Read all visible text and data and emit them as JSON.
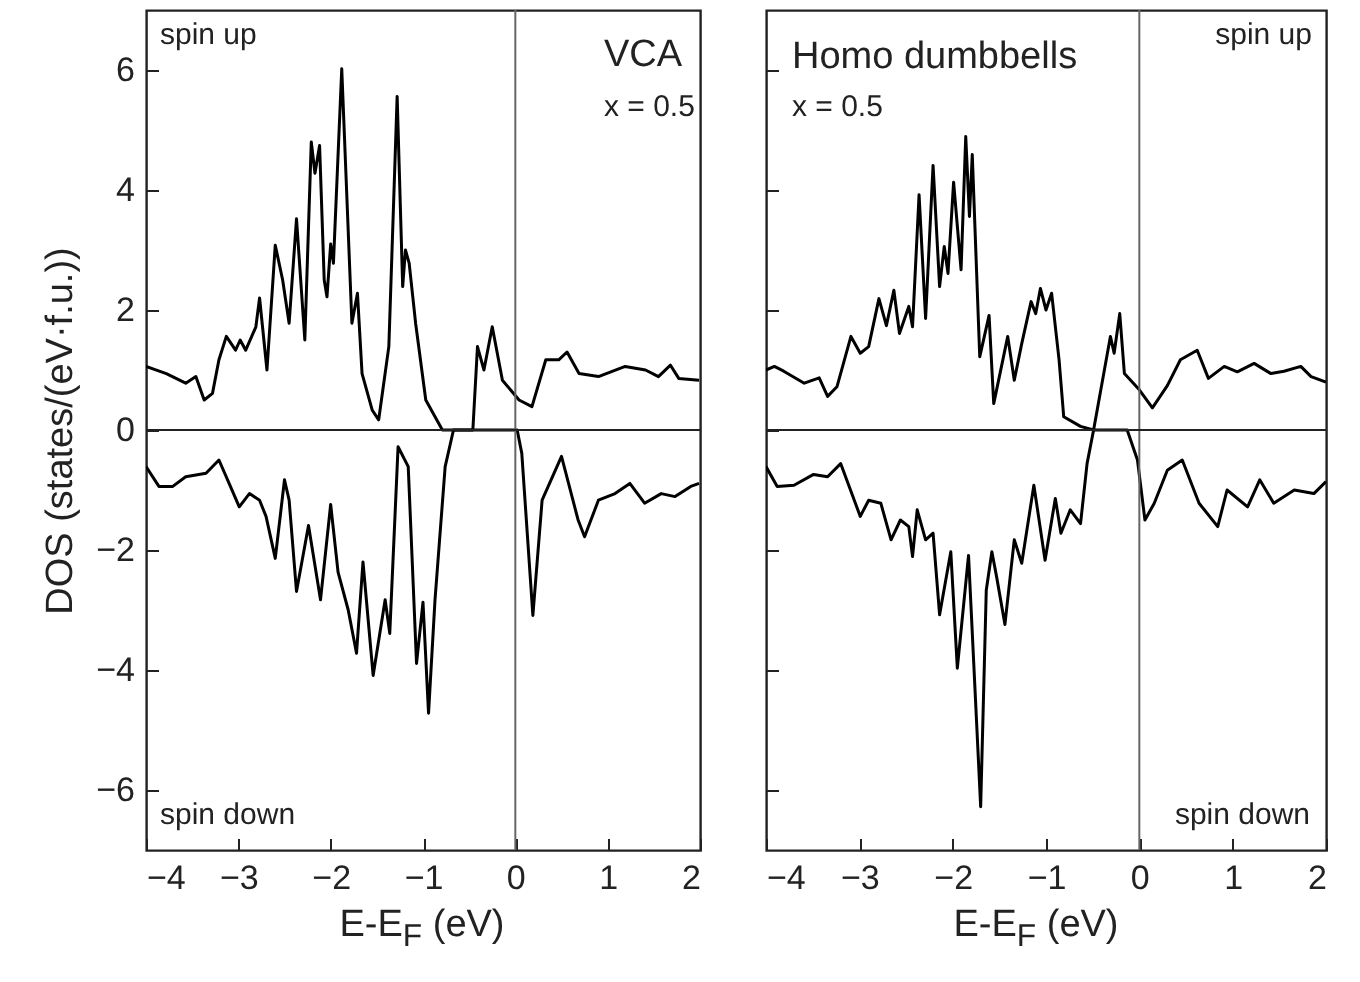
{
  "chart_data": [
    {
      "type": "line",
      "xlabel": "E-E$_{F}$ (eV)",
      "ylabel": "DOS (states/(eV·f.u.))",
      "xlim": [
        -4,
        2
      ],
      "ylim": [
        -7,
        7
      ],
      "xticks": [
        -4,
        -3,
        -2,
        -1,
        0,
        1,
        2
      ],
      "yticks": [
        -6,
        -4,
        -2,
        0,
        2,
        4,
        6
      ],
      "series": [
        {
          "color": "#000000",
          "x": [
            -4,
            -3.78,
            -3.57,
            -3.46,
            -3.37,
            -3.28,
            -3.21,
            -3.13,
            -3.03,
            -2.98,
            -2.92,
            -2.81,
            -2.77,
            -2.69,
            -2.6,
            -2.52,
            -2.45,
            -2.37,
            -2.28,
            -2.21,
            -2.17,
            -2.12,
            -2.07,
            -2.04,
            -2.0,
            -1.97,
            -1.88,
            -1.77,
            -1.71,
            -1.66,
            -1.55,
            -1.48,
            -1.37,
            -1.28,
            -1.22,
            -1.19,
            -1.15,
            -1.08,
            -0.97,
            -0.79,
            -0.46,
            -0.41,
            -0.34,
            -0.25,
            -0.14,
            0.04,
            0.18,
            0.33,
            0.47,
            0.56,
            0.69,
            0.9,
            1.19,
            1.41,
            1.55,
            1.68,
            1.77,
            1.99
          ],
          "values": [
            1.06,
            0.94,
            0.78,
            0.89,
            0.5,
            0.61,
            1.17,
            1.56,
            1.33,
            1.5,
            1.33,
            1.72,
            2.2,
            1.0,
            3.08,
            2.5,
            1.78,
            3.52,
            1.5,
            4.8,
            4.28,
            4.74,
            2.5,
            2.22,
            3.1,
            2.78,
            6.02,
            1.78,
            2.28,
            0.94,
            0.33,
            0.17,
            1.39,
            5.56,
            2.39,
            3.0,
            2.78,
            1.78,
            0.5,
            0,
            0,
            1.39,
            1.0,
            1.72,
            0.83,
            0.5,
            0.39,
            1.17,
            1.17,
            1.3,
            0.94,
            0.89,
            1.06,
            1.0,
            0.89,
            1.08,
            0.86,
            0.83
          ]
        },
        {
          "color": "#000000",
          "x": [
            -4,
            -3.86,
            -3.71,
            -3.57,
            -3.35,
            -3.21,
            -3.1,
            -2.99,
            -2.88,
            -2.77,
            -2.7,
            -2.6,
            -2.5,
            -2.45,
            -2.37,
            -2.24,
            -2.11,
            -2.0,
            -1.92,
            -1.81,
            -1.72,
            -1.65,
            -1.54,
            -1.41,
            -1.36,
            -1.27,
            -1.16,
            -1.07,
            -1.0,
            -0.94,
            -0.87,
            -0.76,
            -0.67,
            0.02,
            0.07,
            0.19,
            0.29,
            0.5,
            0.68,
            0.75,
            0.9,
            1.08,
            1.24,
            1.4,
            1.58,
            1.73,
            1.9,
            1.99
          ],
          "values": [
            -0.61,
            -0.94,
            -0.94,
            -0.78,
            -0.72,
            -0.5,
            -0.89,
            -1.28,
            -1.06,
            -1.17,
            -1.44,
            -2.14,
            -0.83,
            -1.17,
            -2.69,
            -1.59,
            -2.83,
            -1.24,
            -2.37,
            -3.0,
            -3.72,
            -2.2,
            -4.09,
            -2.83,
            -3.39,
            -0.28,
            -0.61,
            -3.89,
            -2.87,
            -4.72,
            -2.83,
            -0.61,
            0,
            0,
            -0.39,
            -3.09,
            -1.17,
            -0.44,
            -1.5,
            -1.78,
            -1.17,
            -1.06,
            -0.89,
            -1.22,
            -1.06,
            -1.11,
            -0.94,
            -0.89
          ]
        }
      ],
      "ref_lines": [
        {
          "axis": "x",
          "value": 0,
          "color": "#666666"
        },
        {
          "axis": "y",
          "value": 0,
          "color": "#222222"
        }
      ],
      "annotations": [
        "spin up",
        "spin down",
        "VCA",
        "x = 0.5"
      ]
    },
    {
      "type": "line",
      "xlabel": "E-E$_{F}$ (eV)",
      "xlim": [
        -4,
        2
      ],
      "ylim": [
        -7,
        7
      ],
      "xticks": [
        -4,
        -3,
        -2,
        -1,
        0,
        1,
        2
      ],
      "yticks": [
        -6,
        -4,
        -2,
        0,
        2,
        4,
        6
      ],
      "tick_labels": "x",
      "series": [
        {
          "color": "#000000",
          "x": [
            -4,
            -3.91,
            -3.81,
            -3.59,
            -3.43,
            -3.34,
            -3.24,
            -3.09,
            -2.99,
            -2.9,
            -2.79,
            -2.71,
            -2.63,
            -2.57,
            -2.47,
            -2.43,
            -2.36,
            -2.29,
            -2.21,
            -2.14,
            -2.09,
            -2.05,
            -1.99,
            -1.91,
            -1.86,
            -1.82,
            -1.79,
            -1.71,
            -1.61,
            -1.56,
            -1.41,
            -1.34,
            -1.26,
            -1.16,
            -1.11,
            -1.06,
            -1.0,
            -0.94,
            -0.86,
            -0.81,
            -0.63,
            -0.49,
            -0.31,
            -0.27,
            -0.21,
            -0.16,
            0.0,
            0.14,
            0.3,
            0.44,
            0.62,
            0.74,
            0.91,
            1.05,
            1.23,
            1.41,
            1.55,
            1.73,
            1.84,
            2.0
          ],
          "values": [
            1.0,
            1.06,
            0.98,
            0.78,
            0.87,
            0.56,
            0.72,
            1.56,
            1.28,
            1.39,
            2.19,
            1.74,
            2.33,
            1.61,
            2.06,
            1.72,
            3.92,
            1.86,
            4.41,
            2.39,
            3.06,
            2.61,
            4.13,
            2.67,
            4.89,
            3.56,
            4.59,
            1.22,
            1.91,
            0.44,
            1.56,
            0.83,
            1.44,
            2.14,
            1.94,
            2.36,
            2.0,
            2.28,
            1.17,
            0.22,
            0.06,
            0,
            1.56,
            1.28,
            1.94,
            0.94,
            0.67,
            0.37,
            0.74,
            1.17,
            1.33,
            0.86,
            1.06,
            0.97,
            1.11,
            0.94,
            0.98,
            1.06,
            0.89,
            0.8
          ]
        },
        {
          "color": "#000000",
          "x": [
            -4,
            -3.88,
            -3.7,
            -3.49,
            -3.34,
            -3.2,
            -2.99,
            -2.9,
            -2.77,
            -2.66,
            -2.56,
            -2.47,
            -2.43,
            -2.38,
            -2.29,
            -2.21,
            -2.14,
            -2.02,
            -1.95,
            -1.83,
            -1.7,
            -1.64,
            -1.58,
            -1.53,
            -1.44,
            -1.34,
            -1.26,
            -1.13,
            -1.01,
            -0.9,
            -0.84,
            -0.74,
            -0.63,
            -0.56,
            -0.49,
            -0.13,
            -0.02,
            0.06,
            0.16,
            0.3,
            0.46,
            0.64,
            0.84,
            0.94,
            1.16,
            1.29,
            1.44,
            1.66,
            1.87,
            2.0
          ],
          "values": [
            -0.61,
            -0.94,
            -0.92,
            -0.74,
            -0.78,
            -0.56,
            -1.44,
            -1.17,
            -1.22,
            -1.83,
            -1.5,
            -1.61,
            -2.11,
            -1.33,
            -1.83,
            -1.72,
            -3.08,
            -2.03,
            -3.97,
            -2.09,
            -6.28,
            -2.67,
            -2.03,
            -2.44,
            -3.24,
            -1.83,
            -2.22,
            -0.92,
            -2.17,
            -1.14,
            -1.72,
            -1.33,
            -1.56,
            -0.56,
            0,
            0,
            -0.5,
            -1.5,
            -1.22,
            -0.67,
            -0.5,
            -1.22,
            -1.61,
            -1.0,
            -1.28,
            -0.83,
            -1.22,
            -1.0,
            -1.06,
            -0.86
          ]
        }
      ],
      "ref_lines": [
        {
          "axis": "x",
          "value": 0,
          "color": "#666666"
        },
        {
          "axis": "y",
          "value": 0,
          "color": "#222222"
        }
      ],
      "annotations": [
        "Homo dumbbells",
        "x = 0.5",
        "spin up",
        "spin down"
      ]
    }
  ]
}
